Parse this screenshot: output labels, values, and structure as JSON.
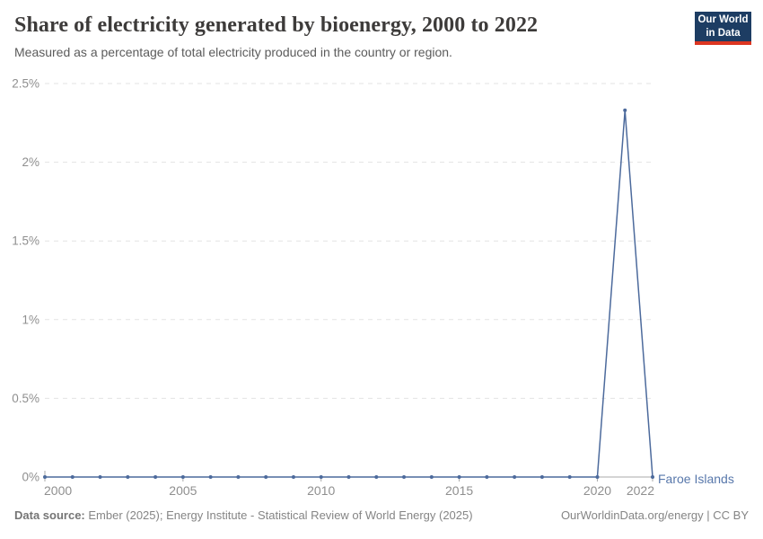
{
  "header": {
    "title": "Share of electricity generated by bioenergy, 2000 to 2022",
    "subtitle": "Measured as a percentage of total electricity produced in the country or region.",
    "logo_line1": "Our World",
    "logo_line2": "in Data"
  },
  "chart_data": {
    "type": "line",
    "title": "Share of electricity generated by bioenergy, 2000 to 2022",
    "subtitle": "Measured as a percentage of total electricity produced in the country or region.",
    "x": [
      2000,
      2001,
      2002,
      2003,
      2004,
      2005,
      2006,
      2007,
      2008,
      2009,
      2010,
      2011,
      2012,
      2013,
      2014,
      2015,
      2016,
      2017,
      2018,
      2019,
      2020,
      2021,
      2022
    ],
    "series": [
      {
        "name": "Faroe Islands",
        "color": "#4C6A9C",
        "values": [
          0,
          0,
          0,
          0,
          0,
          0,
          0,
          0,
          0,
          0,
          0,
          0,
          0,
          0,
          0,
          0,
          0,
          0,
          0,
          0,
          0,
          2.33,
          0
        ]
      }
    ],
    "ylabel": "",
    "xlabel": "",
    "ylim": [
      0,
      2.5
    ],
    "xlim": [
      2000,
      2022
    ],
    "grid": "horizontal-dashed",
    "legend_position": "right-of-last-point",
    "y_ticks": [
      {
        "v": 0,
        "label": "0%"
      },
      {
        "v": 0.5,
        "label": "0.5%"
      },
      {
        "v": 1,
        "label": "1%"
      },
      {
        "v": 1.5,
        "label": "1.5%"
      },
      {
        "v": 2,
        "label": "2%"
      },
      {
        "v": 2.5,
        "label": "2.5%"
      }
    ],
    "x_ticks": [
      {
        "v": 2000,
        "label": "2000"
      },
      {
        "v": 2005,
        "label": "2005"
      },
      {
        "v": 2010,
        "label": "2010"
      },
      {
        "v": 2015,
        "label": "2015"
      },
      {
        "v": 2020,
        "label": "2020"
      },
      {
        "v": 2022,
        "label": "2022"
      }
    ],
    "entity_label": "Faroe Islands"
  },
  "footer": {
    "source_label": "Data source:",
    "source_text": " Ember (2025); Energy Institute - Statistical Review of World Energy (2025)",
    "right_text": "OurWorldinData.org/energy | CC BY"
  },
  "colors": {
    "line": "#4C6A9C",
    "entity_label": "#5878ab",
    "grid": "#e3e3e3",
    "axis": "#a8a8a8",
    "tick_text": "#8f8f8f",
    "logo_bg": "#1d3d63",
    "logo_accent": "#dc3521"
  }
}
